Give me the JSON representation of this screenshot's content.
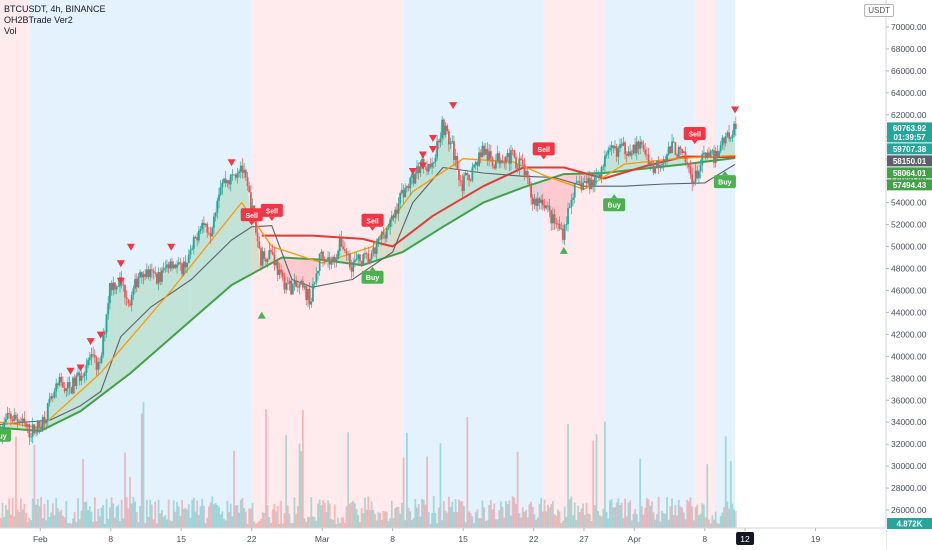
{
  "header": {
    "symbol_line": "BTCUSDT, 4h, BINANCE",
    "indicator1": "OH2BTrade Ver2",
    "indicator2": "Vol",
    "currency_badge": "USDT"
  },
  "colors": {
    "up_candle": "#26a69a",
    "down_candle": "#ef5350",
    "buy": "#4caf50",
    "sell": "#f23645",
    "ma_green": "#43a047",
    "ma_red": "#e53935",
    "ma_orange": "#ff9800",
    "grey_line": "#5d606b",
    "bg_blue": "#e3f2fd",
    "bg_red": "#ffebee"
  },
  "chart_data": {
    "type": "candlestick",
    "symbol": "BTCUSDT",
    "timeframe": "4h",
    "exchange": "BINANCE",
    "ylim": [
      24000,
      72000
    ],
    "y_ticks": [
      26000,
      28000,
      30000,
      32000,
      34000,
      36000,
      38000,
      40000,
      42000,
      44000,
      46000,
      48000,
      50000,
      52000,
      54000,
      56000,
      58000,
      60000,
      62000,
      64000,
      66000,
      68000,
      70000
    ],
    "x_ticks": [
      {
        "label": "Feb",
        "date": "2021-02-01"
      },
      {
        "label": "8",
        "date": "2021-02-08"
      },
      {
        "label": "15",
        "date": "2021-02-15"
      },
      {
        "label": "22",
        "date": "2021-02-22"
      },
      {
        "label": "Mar",
        "date": "2021-03-01"
      },
      {
        "label": "8",
        "date": "2021-03-08"
      },
      {
        "label": "15",
        "date": "2021-03-15"
      },
      {
        "label": "22",
        "date": "2021-03-22"
      },
      {
        "label": "27",
        "date": "2021-03-27"
      },
      {
        "label": "Apr",
        "date": "2021-04-01"
      },
      {
        "label": "8",
        "date": "2021-04-08"
      },
      {
        "label": "12",
        "date": "2021-04-12"
      },
      {
        "label": "19",
        "date": "2021-04-19"
      }
    ],
    "highlighted_x_tick": "12",
    "price_path": [
      [
        "2021-01-28",
        33000
      ],
      [
        "2021-01-29",
        34500
      ],
      [
        "2021-01-30",
        34200
      ],
      [
        "2021-01-31",
        33100
      ],
      [
        "2021-02-01",
        33600
      ],
      [
        "2021-02-02",
        35500
      ],
      [
        "2021-02-03",
        37500
      ],
      [
        "2021-02-04",
        37000
      ],
      [
        "2021-02-05",
        38300
      ],
      [
        "2021-02-06",
        39800
      ],
      [
        "2021-02-07",
        38900
      ],
      [
        "2021-02-08",
        46500
      ],
      [
        "2021-02-09",
        46800
      ],
      [
        "2021-02-10",
        44900
      ],
      [
        "2021-02-11",
        47900
      ],
      [
        "2021-02-12",
        47400
      ],
      [
        "2021-02-13",
        47200
      ],
      [
        "2021-02-14",
        48800
      ],
      [
        "2021-02-15",
        47900
      ],
      [
        "2021-02-16",
        49200
      ],
      [
        "2021-02-17",
        52200
      ],
      [
        "2021-02-18",
        51600
      ],
      [
        "2021-02-19",
        55900
      ],
      [
        "2021-02-20",
        56100
      ],
      [
        "2021-02-21",
        57500
      ],
      [
        "2021-02-22",
        54000
      ],
      [
        "2021-02-23",
        48900
      ],
      [
        "2021-02-24",
        49700
      ],
      [
        "2021-02-25",
        47000
      ],
      [
        "2021-02-26",
        46300
      ],
      [
        "2021-02-27",
        46200
      ],
      [
        "2021-02-28",
        45200
      ],
      [
        "2021-03-01",
        49600
      ],
      [
        "2021-03-02",
        48400
      ],
      [
        "2021-03-03",
        50400
      ],
      [
        "2021-03-04",
        48400
      ],
      [
        "2021-03-05",
        48800
      ],
      [
        "2021-03-06",
        48900
      ],
      [
        "2021-03-07",
        51000
      ],
      [
        "2021-03-08",
        52300
      ],
      [
        "2021-03-09",
        54900
      ],
      [
        "2021-03-10",
        56000
      ],
      [
        "2021-03-11",
        57800
      ],
      [
        "2021-03-12",
        57200
      ],
      [
        "2021-03-13",
        61200
      ],
      [
        "2021-03-14",
        59000
      ],
      [
        "2021-03-15",
        55600
      ],
      [
        "2021-03-16",
        56900
      ],
      [
        "2021-03-17",
        58900
      ],
      [
        "2021-03-18",
        57600
      ],
      [
        "2021-03-19",
        58300
      ],
      [
        "2021-03-20",
        58100
      ],
      [
        "2021-03-21",
        57300
      ],
      [
        "2021-03-22",
        54100
      ],
      [
        "2021-03-23",
        54300
      ],
      [
        "2021-03-24",
        52300
      ],
      [
        "2021-03-25",
        51300
      ],
      [
        "2021-03-26",
        55000
      ],
      [
        "2021-03-27",
        55800
      ],
      [
        "2021-03-28",
        55800
      ],
      [
        "2021-03-29",
        57600
      ],
      [
        "2021-03-30",
        58800
      ],
      [
        "2021-03-31",
        58900
      ],
      [
        "2021-04-01",
        59000
      ],
      [
        "2021-04-02",
        59000
      ],
      [
        "2021-04-03",
        57100
      ],
      [
        "2021-04-04",
        58200
      ],
      [
        "2021-04-05",
        59100
      ],
      [
        "2021-04-06",
        58000
      ],
      [
        "2021-04-07",
        56000
      ],
      [
        "2021-04-08",
        58100
      ],
      [
        "2021-04-09",
        58100
      ],
      [
        "2021-04-10",
        59800
      ],
      [
        "2021-04-11",
        60763.92
      ]
    ],
    "series": [
      {
        "name": "",
        "color": "#43a047",
        "points": [
          [
            "2021-01-28",
            33500
          ],
          [
            "2021-02-01",
            33200
          ],
          [
            "2021-02-05",
            35000
          ],
          [
            "2021-02-10",
            38500
          ],
          [
            "2021-02-15",
            42500
          ],
          [
            "2021-02-20",
            46500
          ],
          [
            "2021-02-25",
            49000
          ],
          [
            "2021-03-01",
            48800
          ],
          [
            "2021-03-05",
            48300
          ],
          [
            "2021-03-09",
            49500
          ],
          [
            "2021-03-13",
            51800
          ],
          [
            "2021-03-17",
            54000
          ],
          [
            "2021-03-21",
            55400
          ],
          [
            "2021-03-25",
            56600
          ],
          [
            "2021-03-29",
            56700
          ],
          [
            "2021-04-02",
            57100
          ],
          [
            "2021-04-06",
            57500
          ],
          [
            "2021-04-11",
            58064.01
          ]
        ]
      },
      {
        "name": "",
        "color": "#e53935",
        "points": [
          [
            "2021-02-23",
            51000
          ],
          [
            "2021-02-28",
            51000
          ],
          [
            "2021-03-05",
            50700
          ],
          [
            "2021-03-08",
            50000
          ],
          [
            "2021-03-12",
            52800
          ],
          [
            "2021-03-17",
            55500
          ],
          [
            "2021-03-21",
            57200
          ],
          [
            "2021-03-25",
            57200
          ],
          [
            "2021-03-29",
            56200
          ],
          [
            "2021-04-02",
            57300
          ],
          [
            "2021-04-06",
            58200
          ],
          [
            "2021-04-11",
            58150.01
          ]
        ]
      },
      {
        "name": "",
        "color": "#5d606b",
        "points": [
          [
            "2021-01-28",
            33800
          ],
          [
            "2021-02-02",
            34200
          ],
          [
            "2021-02-05",
            35500
          ],
          [
            "2021-02-07",
            36800
          ],
          [
            "2021-02-09",
            41800
          ],
          [
            "2021-02-12",
            44500
          ],
          [
            "2021-02-16",
            47000
          ],
          [
            "2021-02-20",
            50600
          ],
          [
            "2021-02-22",
            51800
          ],
          [
            "2021-02-24",
            51900
          ],
          [
            "2021-02-26",
            47000
          ],
          [
            "2021-02-28",
            46300
          ],
          [
            "2021-03-04",
            47000
          ],
          [
            "2021-03-08",
            49500
          ],
          [
            "2021-03-10",
            54000
          ],
          [
            "2021-03-13",
            57200
          ],
          [
            "2021-03-17",
            56700
          ],
          [
            "2021-03-21",
            56400
          ],
          [
            "2021-03-24",
            56300
          ],
          [
            "2021-03-27",
            55500
          ],
          [
            "2021-03-31",
            55500
          ],
          [
            "2021-04-04",
            55700
          ],
          [
            "2021-04-08",
            55800
          ],
          [
            "2021-04-11",
            57494.43
          ]
        ]
      },
      {
        "name": "",
        "color": "#ff9800",
        "points": [
          [
            "2021-01-28",
            34000
          ],
          [
            "2021-02-01",
            33500
          ],
          [
            "2021-02-07",
            38500
          ],
          [
            "2021-02-14",
            46000
          ],
          [
            "2021-02-21",
            54000
          ],
          [
            "2021-02-24",
            50000
          ],
          [
            "2021-03-01",
            48500
          ],
          [
            "2021-03-06",
            50000
          ],
          [
            "2021-03-10",
            55000
          ],
          [
            "2021-03-15",
            58000
          ],
          [
            "2021-03-20",
            57700
          ],
          [
            "2021-03-23",
            56500
          ],
          [
            "2021-03-27",
            55200
          ],
          [
            "2021-03-31",
            57500
          ],
          [
            "2021-04-05",
            58000
          ],
          [
            "2021-04-11",
            58300
          ]
        ]
      }
    ],
    "background_regimes": [
      {
        "from": "2021-01-28",
        "to": "2021-01-31",
        "regime": "red"
      },
      {
        "from": "2021-01-31",
        "to": "2021-02-22",
        "regime": "blue"
      },
      {
        "from": "2021-02-22",
        "to": "2021-03-09",
        "regime": "red"
      },
      {
        "from": "2021-03-09",
        "to": "2021-03-23",
        "regime": "blue"
      },
      {
        "from": "2021-03-23",
        "to": "2021-03-29",
        "regime": "red"
      },
      {
        "from": "2021-03-29",
        "to": "2021-04-07",
        "regime": "blue"
      },
      {
        "from": "2021-04-07",
        "to": "2021-04-09",
        "regime": "red"
      },
      {
        "from": "2021-04-09",
        "to": "2021-04-11",
        "regime": "blue"
      }
    ],
    "signals": [
      {
        "label": "Buy",
        "date": "2021-01-28",
        "price": 33400,
        "type": "buy"
      },
      {
        "label": "Sell",
        "date": "2021-02-22",
        "price": 52300,
        "type": "sell"
      },
      {
        "label": "Sell",
        "date": "2021-02-24",
        "price": 52700,
        "type": "sell"
      },
      {
        "label": "Sell",
        "date": "2021-03-06",
        "price": 51800,
        "type": "sell"
      },
      {
        "label": "Buy",
        "date": "2021-03-06",
        "price": 47800,
        "type": "buy"
      },
      {
        "label": "Sell",
        "date": "2021-03-23",
        "price": 58300,
        "type": "sell"
      },
      {
        "label": "Buy",
        "date": "2021-03-30",
        "price": 54400,
        "type": "buy"
      },
      {
        "label": "Sell",
        "date": "2021-04-07",
        "price": 59700,
        "type": "sell"
      },
      {
        "label": "Buy",
        "date": "2021-04-10",
        "price": 56500,
        "type": "buy"
      }
    ],
    "markers_down": [
      {
        "date": "2021-02-04",
        "price": 38500
      },
      {
        "date": "2021-02-05",
        "price": 38800
      },
      {
        "date": "2021-02-06",
        "price": 41200
      },
      {
        "date": "2021-02-07",
        "price": 41800
      },
      {
        "date": "2021-02-09",
        "price": 46700
      },
      {
        "date": "2021-02-09",
        "price": 48300
      },
      {
        "date": "2021-02-10",
        "price": 49800
      },
      {
        "date": "2021-02-14",
        "price": 49800
      },
      {
        "date": "2021-02-20",
        "price": 57500
      },
      {
        "date": "2021-03-10",
        "price": 56700
      },
      {
        "date": "2021-03-11",
        "price": 57200
      },
      {
        "date": "2021-03-11",
        "price": 58200
      },
      {
        "date": "2021-03-12",
        "price": 58700
      },
      {
        "date": "2021-03-12",
        "price": 59700
      },
      {
        "date": "2021-03-14",
        "price": 62700
      },
      {
        "date": "2021-04-11",
        "price": 62300
      }
    ],
    "markers_up": [
      {
        "date": "2021-02-23",
        "price": 43800
      },
      {
        "date": "2021-03-25",
        "price": 49700
      }
    ],
    "price_tags": [
      {
        "value": "60763.92",
        "sub": "01:39:57",
        "price": 60763.92,
        "color": "#26a69a"
      },
      {
        "value": "59707.38",
        "price": 59707.38,
        "color": "#26a69a"
      },
      {
        "value": "58150.01",
        "price": 58150.01,
        "color": "#5d606b"
      },
      {
        "value": "58064.01",
        "price": 58064.01,
        "color": "#43a047"
      },
      {
        "value": "57494.43",
        "price": 57494.43,
        "color": "#43a047"
      }
    ],
    "volume_tag": "4.872K",
    "volume_tag_color": "#26a69a"
  }
}
